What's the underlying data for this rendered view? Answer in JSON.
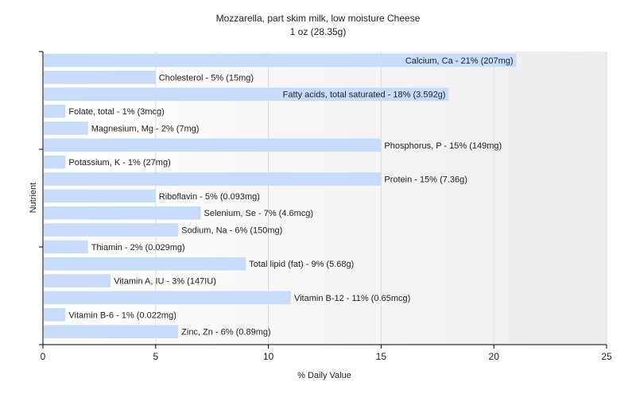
{
  "chart_data": {
    "type": "bar",
    "orientation": "horizontal",
    "title": "Mozzarella, part skim milk, low moisture Cheese",
    "subtitle": "1 oz (28.35g)",
    "xlabel": "% Daily Value",
    "ylabel": "Nutrient",
    "xlim": [
      0,
      25
    ],
    "xticks": [
      0,
      5,
      10,
      15,
      20,
      25
    ],
    "grid": true,
    "bar_color": "#c6dcfa",
    "categories": [
      "Calcium, Ca",
      "Cholesterol",
      "Fatty acids, total saturated",
      "Folate, total",
      "Magnesium, Mg",
      "Phosphorus, P",
      "Potassium, K",
      "Protein",
      "Riboflavin",
      "Selenium, Se",
      "Sodium, Na",
      "Thiamin",
      "Total lipid (fat)",
      "Vitamin A, IU",
      "Vitamin B-12",
      "Vitamin B-6",
      "Zinc, Zn"
    ],
    "values": [
      21,
      5,
      18,
      1,
      2,
      15,
      1,
      15,
      5,
      7,
      6,
      2,
      9,
      3,
      11,
      1,
      6
    ],
    "labels": [
      "Calcium, Ca - 21% (207mg)",
      "Cholesterol - 5% (15mg)",
      "Fatty acids, total saturated - 18% (3.592g)",
      "Folate, total - 1% (3mcg)",
      "Magnesium, Mg - 2% (7mg)",
      "Phosphorus, P - 15% (149mg)",
      "Potassium, K - 1% (27mg)",
      "Protein - 15% (7.36g)",
      "Riboflavin - 5% (0.093mg)",
      "Selenium, Se - 7% (4.6mcg)",
      "Sodium, Na - 6% (150mg)",
      "Thiamin - 2% (0.029mg)",
      "Total lipid (fat) - 9% (5.68g)",
      "Vitamin A, IU - 3% (147IU)",
      "Vitamin B-12 - 11% (0.65mcg)",
      "Vitamin B-6 - 1% (0.022mg)",
      "Zinc, Zn - 6% (0.89mg)"
    ]
  }
}
